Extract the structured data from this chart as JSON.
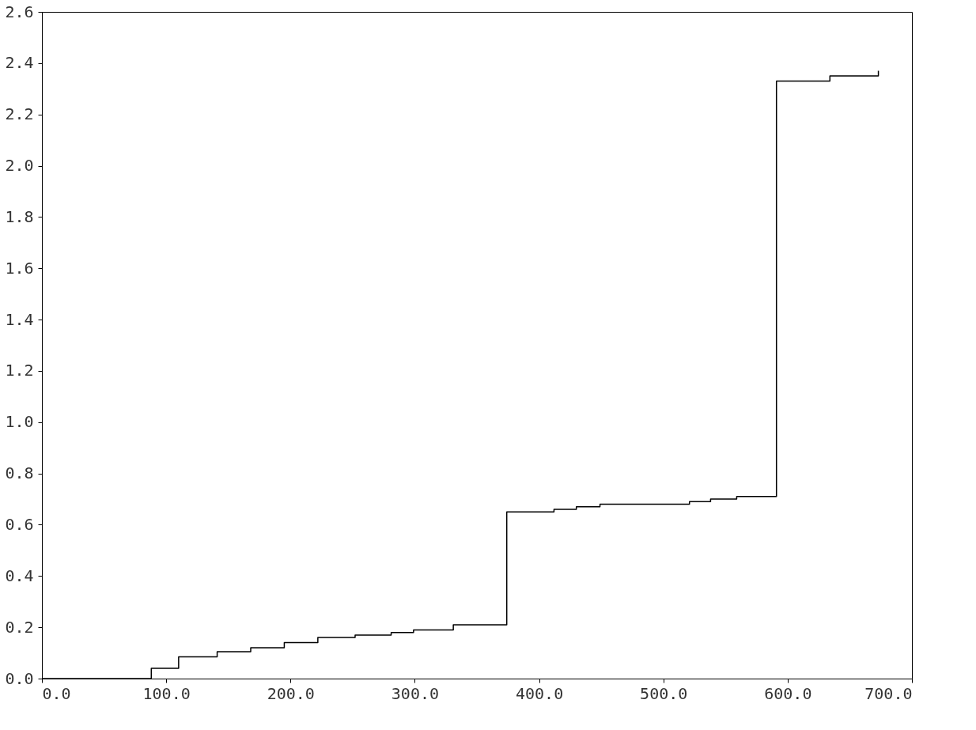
{
  "chart_data": {
    "type": "step",
    "x": [
      0,
      88,
      110,
      141,
      168,
      195,
      222,
      252,
      281,
      299,
      331,
      374,
      412,
      430,
      449,
      521,
      538,
      559,
      591,
      634,
      673
    ],
    "values": [
      0,
      0.04,
      0.085,
      0.105,
      0.12,
      0.14,
      0.16,
      0.17,
      0.18,
      0.19,
      0.21,
      0.65,
      0.66,
      0.67,
      0.68,
      0.69,
      0.7,
      0.71,
      2.33,
      2.35,
      2.37
    ],
    "color": "#000000",
    "line_style": "solid",
    "marker": "none",
    "grid": false,
    "xlim": [
      0,
      700
    ],
    "xticks": [
      {
        "value": 0,
        "label": "0.0"
      },
      {
        "value": 100,
        "label": "100.0"
      },
      {
        "value": 200,
        "label": "200.0"
      },
      {
        "value": 300,
        "label": "300.0"
      },
      {
        "value": 400,
        "label": "400.0"
      },
      {
        "value": 500,
        "label": "500.0"
      },
      {
        "value": 600,
        "label": "600.0"
      },
      {
        "value": 700,
        "label": "700.0"
      }
    ],
    "ylim": [
      0,
      2.6
    ],
    "yticks": [
      {
        "value": 0,
        "label": "0.0"
      },
      {
        "value": 0.2,
        "label": "0.2"
      },
      {
        "value": 0.4,
        "label": "0.4"
      },
      {
        "value": 0.6,
        "label": "0.6"
      },
      {
        "value": 0.8,
        "label": "0.8"
      },
      {
        "value": 1.0,
        "label": "1.0"
      },
      {
        "value": 1.2,
        "label": "1.2"
      },
      {
        "value": 1.4,
        "label": "1.4"
      },
      {
        "value": 1.6,
        "label": "1.6"
      },
      {
        "value": 1.8,
        "label": "1.8"
      },
      {
        "value": 2.0,
        "label": "2.0"
      },
      {
        "value": 2.2,
        "label": "2.2"
      },
      {
        "value": 2.4,
        "label": "2.4"
      },
      {
        "value": 2.6,
        "label": "2.6"
      }
    ]
  }
}
